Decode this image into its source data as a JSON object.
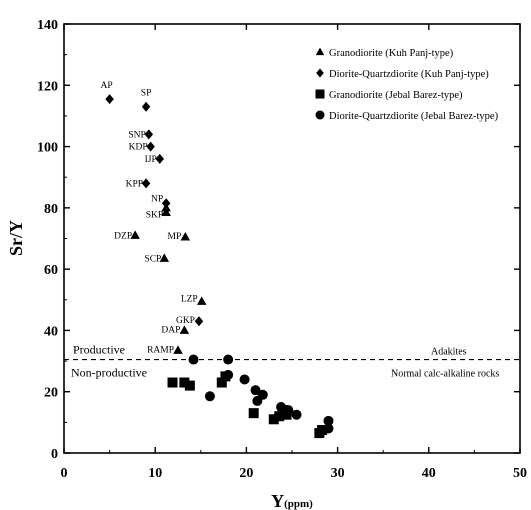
{
  "chart_data": {
    "type": "scatter",
    "xlabel": "Y",
    "xlabel_sub": "(ppm)",
    "ylabel": "Sr/Y",
    "xlim": [
      0,
      50
    ],
    "ylim": [
      0,
      140
    ],
    "xticks": [
      "0",
      "10",
      "20",
      "30",
      "40",
      "50"
    ],
    "yticks": [
      "0",
      "20",
      "40",
      "60",
      "80",
      "100",
      "120",
      "140"
    ],
    "grid": false,
    "legend_position": "top-right",
    "series": [
      {
        "name": "Granodiorite (Kuh Panj-type)",
        "marker": "triangle",
        "points": [
          {
            "x": 11.2,
            "y": 80.0,
            "label": ""
          },
          {
            "x": 11.2,
            "y": 78.5,
            "label": ""
          },
          {
            "x": 7.8,
            "y": 71.0,
            "label": ""
          },
          {
            "x": 13.3,
            "y": 70.5,
            "label": ""
          },
          {
            "x": 11.0,
            "y": 63.5,
            "label": ""
          },
          {
            "x": 15.1,
            "y": 49.5,
            "label": ""
          },
          {
            "x": 13.2,
            "y": 40.0,
            "label": ""
          },
          {
            "x": 12.5,
            "y": 33.5,
            "label": ""
          }
        ]
      },
      {
        "name": "Diorite-Quartzdiorite (Kuh Panj-type)",
        "marker": "diamond",
        "points": [
          {
            "x": 5.0,
            "y": 115.5,
            "label": ""
          },
          {
            "x": 9.0,
            "y": 113.0,
            "label": ""
          },
          {
            "x": 9.3,
            "y": 104.0,
            "label": ""
          },
          {
            "x": 9.5,
            "y": 100.0,
            "label": ""
          },
          {
            "x": 10.5,
            "y": 96.0,
            "label": ""
          },
          {
            "x": 9.0,
            "y": 88.0,
            "label": ""
          },
          {
            "x": 11.2,
            "y": 81.5,
            "label": ""
          },
          {
            "x": 14.8,
            "y": 43.0,
            "label": ""
          }
        ]
      },
      {
        "name": "Granodiorite (Jebal Barez-type)",
        "marker": "square",
        "points": [
          {
            "x": 11.9,
            "y": 23.0
          },
          {
            "x": 13.2,
            "y": 23.0
          },
          {
            "x": 13.8,
            "y": 22.0
          },
          {
            "x": 17.3,
            "y": 23.0
          },
          {
            "x": 17.7,
            "y": 25.0
          },
          {
            "x": 20.8,
            "y": 13.0
          },
          {
            "x": 23.0,
            "y": 11.0
          },
          {
            "x": 23.6,
            "y": 12.0
          },
          {
            "x": 24.0,
            "y": 14.0
          },
          {
            "x": 24.4,
            "y": 12.5
          },
          {
            "x": 28.0,
            "y": 6.5
          },
          {
            "x": 28.3,
            "y": 7.5
          }
        ]
      },
      {
        "name": "Diorite-Quartzdiorite (Jebal Barez-type)",
        "marker": "circle",
        "points": [
          {
            "x": 14.2,
            "y": 30.5
          },
          {
            "x": 18.0,
            "y": 30.5
          },
          {
            "x": 18.0,
            "y": 25.5
          },
          {
            "x": 16.0,
            "y": 18.5
          },
          {
            "x": 19.8,
            "y": 24.0
          },
          {
            "x": 21.0,
            "y": 20.5
          },
          {
            "x": 21.2,
            "y": 17.0
          },
          {
            "x": 21.8,
            "y": 19.0
          },
          {
            "x": 23.8,
            "y": 15.0
          },
          {
            "x": 24.6,
            "y": 14.0
          },
          {
            "x": 25.5,
            "y": 12.5
          },
          {
            "x": 29.0,
            "y": 10.5
          },
          {
            "x": 29.0,
            "y": 8.0
          }
        ]
      }
    ],
    "point_labels": [
      {
        "text": "AP",
        "x": 5.0,
        "y": 115.5
      },
      {
        "text": "SP",
        "x": 9.0,
        "y": 113.0
      },
      {
        "text": "SNP",
        "x": 9.3,
        "y": 104.0
      },
      {
        "text": "KDP",
        "x": 9.5,
        "y": 100.0
      },
      {
        "text": "IJP",
        "x": 10.5,
        "y": 96.0
      },
      {
        "text": "KPP",
        "x": 9.0,
        "y": 88.0
      },
      {
        "text": "NP",
        "x": 11.2,
        "y": 81.5
      },
      {
        "text": "SKP",
        "x": 11.2,
        "y": 78.5
      },
      {
        "text": "DZP",
        "x": 7.8,
        "y": 71.0
      },
      {
        "text": "MP",
        "x": 13.3,
        "y": 70.5
      },
      {
        "text": "SCP",
        "x": 11.0,
        "y": 63.5
      },
      {
        "text": "LZP",
        "x": 15.1,
        "y": 49.5
      },
      {
        "text": "GKP",
        "x": 14.8,
        "y": 43.0
      },
      {
        "text": "DAP",
        "x": 13.2,
        "y": 40.0
      },
      {
        "text": "RAMP",
        "x": 12.5,
        "y": 33.5
      }
    ],
    "reference_line": {
      "y": 30.5,
      "style": "dashed"
    },
    "annotations": {
      "productive": "Productive",
      "non_productive": "Non-productive",
      "adakites": "Adakites",
      "normal_calc_alkaline": "Normal calc-alkaline rocks"
    }
  }
}
